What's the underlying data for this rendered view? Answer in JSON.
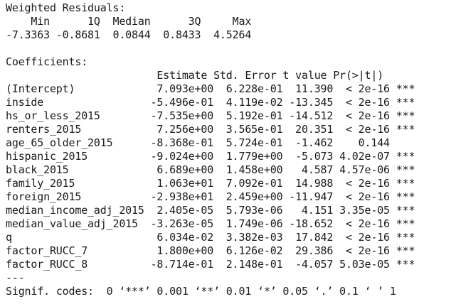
{
  "console": {
    "lines": [
      "Weighted Residuals:",
      "    Min      1Q  Median      3Q     Max ",
      "-7.3363 -0.8681  0.0844  0.8433  4.5264 ",
      "",
      "Coefficients:",
      "                        Estimate Std. Error t value Pr(>|t|)    ",
      "(Intercept)             7.093e+00  6.228e-01  11.390  < 2e-16 ***",
      "inside                 -5.496e-01  4.119e-02 -13.345  < 2e-16 ***",
      "hs_or_less_2015        -7.535e+00  5.192e-01 -14.512  < 2e-16 ***",
      "renters_2015            7.256e+00  3.565e-01  20.351  < 2e-16 ***",
      "age_65_older_2015      -8.368e-01  5.724e-01  -1.462    0.144    ",
      "hispanic_2015          -9.024e+00  1.779e+00  -5.073 4.02e-07 ***",
      "black_2015              6.689e+00  1.458e+00   4.587 4.57e-06 ***",
      "family_2015             1.063e+01  7.092e-01  14.988  < 2e-16 ***",
      "foreign_2015           -2.938e+01  2.459e+00 -11.947  < 2e-16 ***",
      "median_income_adj_2015  2.405e-05  5.793e-06   4.151 3.35e-05 ***",
      "median_value_adj_2015  -3.263e-05  1.749e-06 -18.652  < 2e-16 ***",
      "q                       6.034e-02  3.382e-03  17.842  < 2e-16 ***",
      "factor_RUCC_7           1.800e+00  6.126e-02  29.386  < 2e-16 ***",
      "factor_RUCC_8          -8.714e-01  2.148e-01  -4.057 5.03e-05 ***",
      "---",
      "Signif. codes:  0 ‘***’ 0.001 ‘**’ 0.01 ‘*’ 0.05 ‘.’ 0.1 ‘ ’ 1"
    ]
  },
  "colors": {
    "background": "#ffffff",
    "text": "#1a1a1a"
  }
}
